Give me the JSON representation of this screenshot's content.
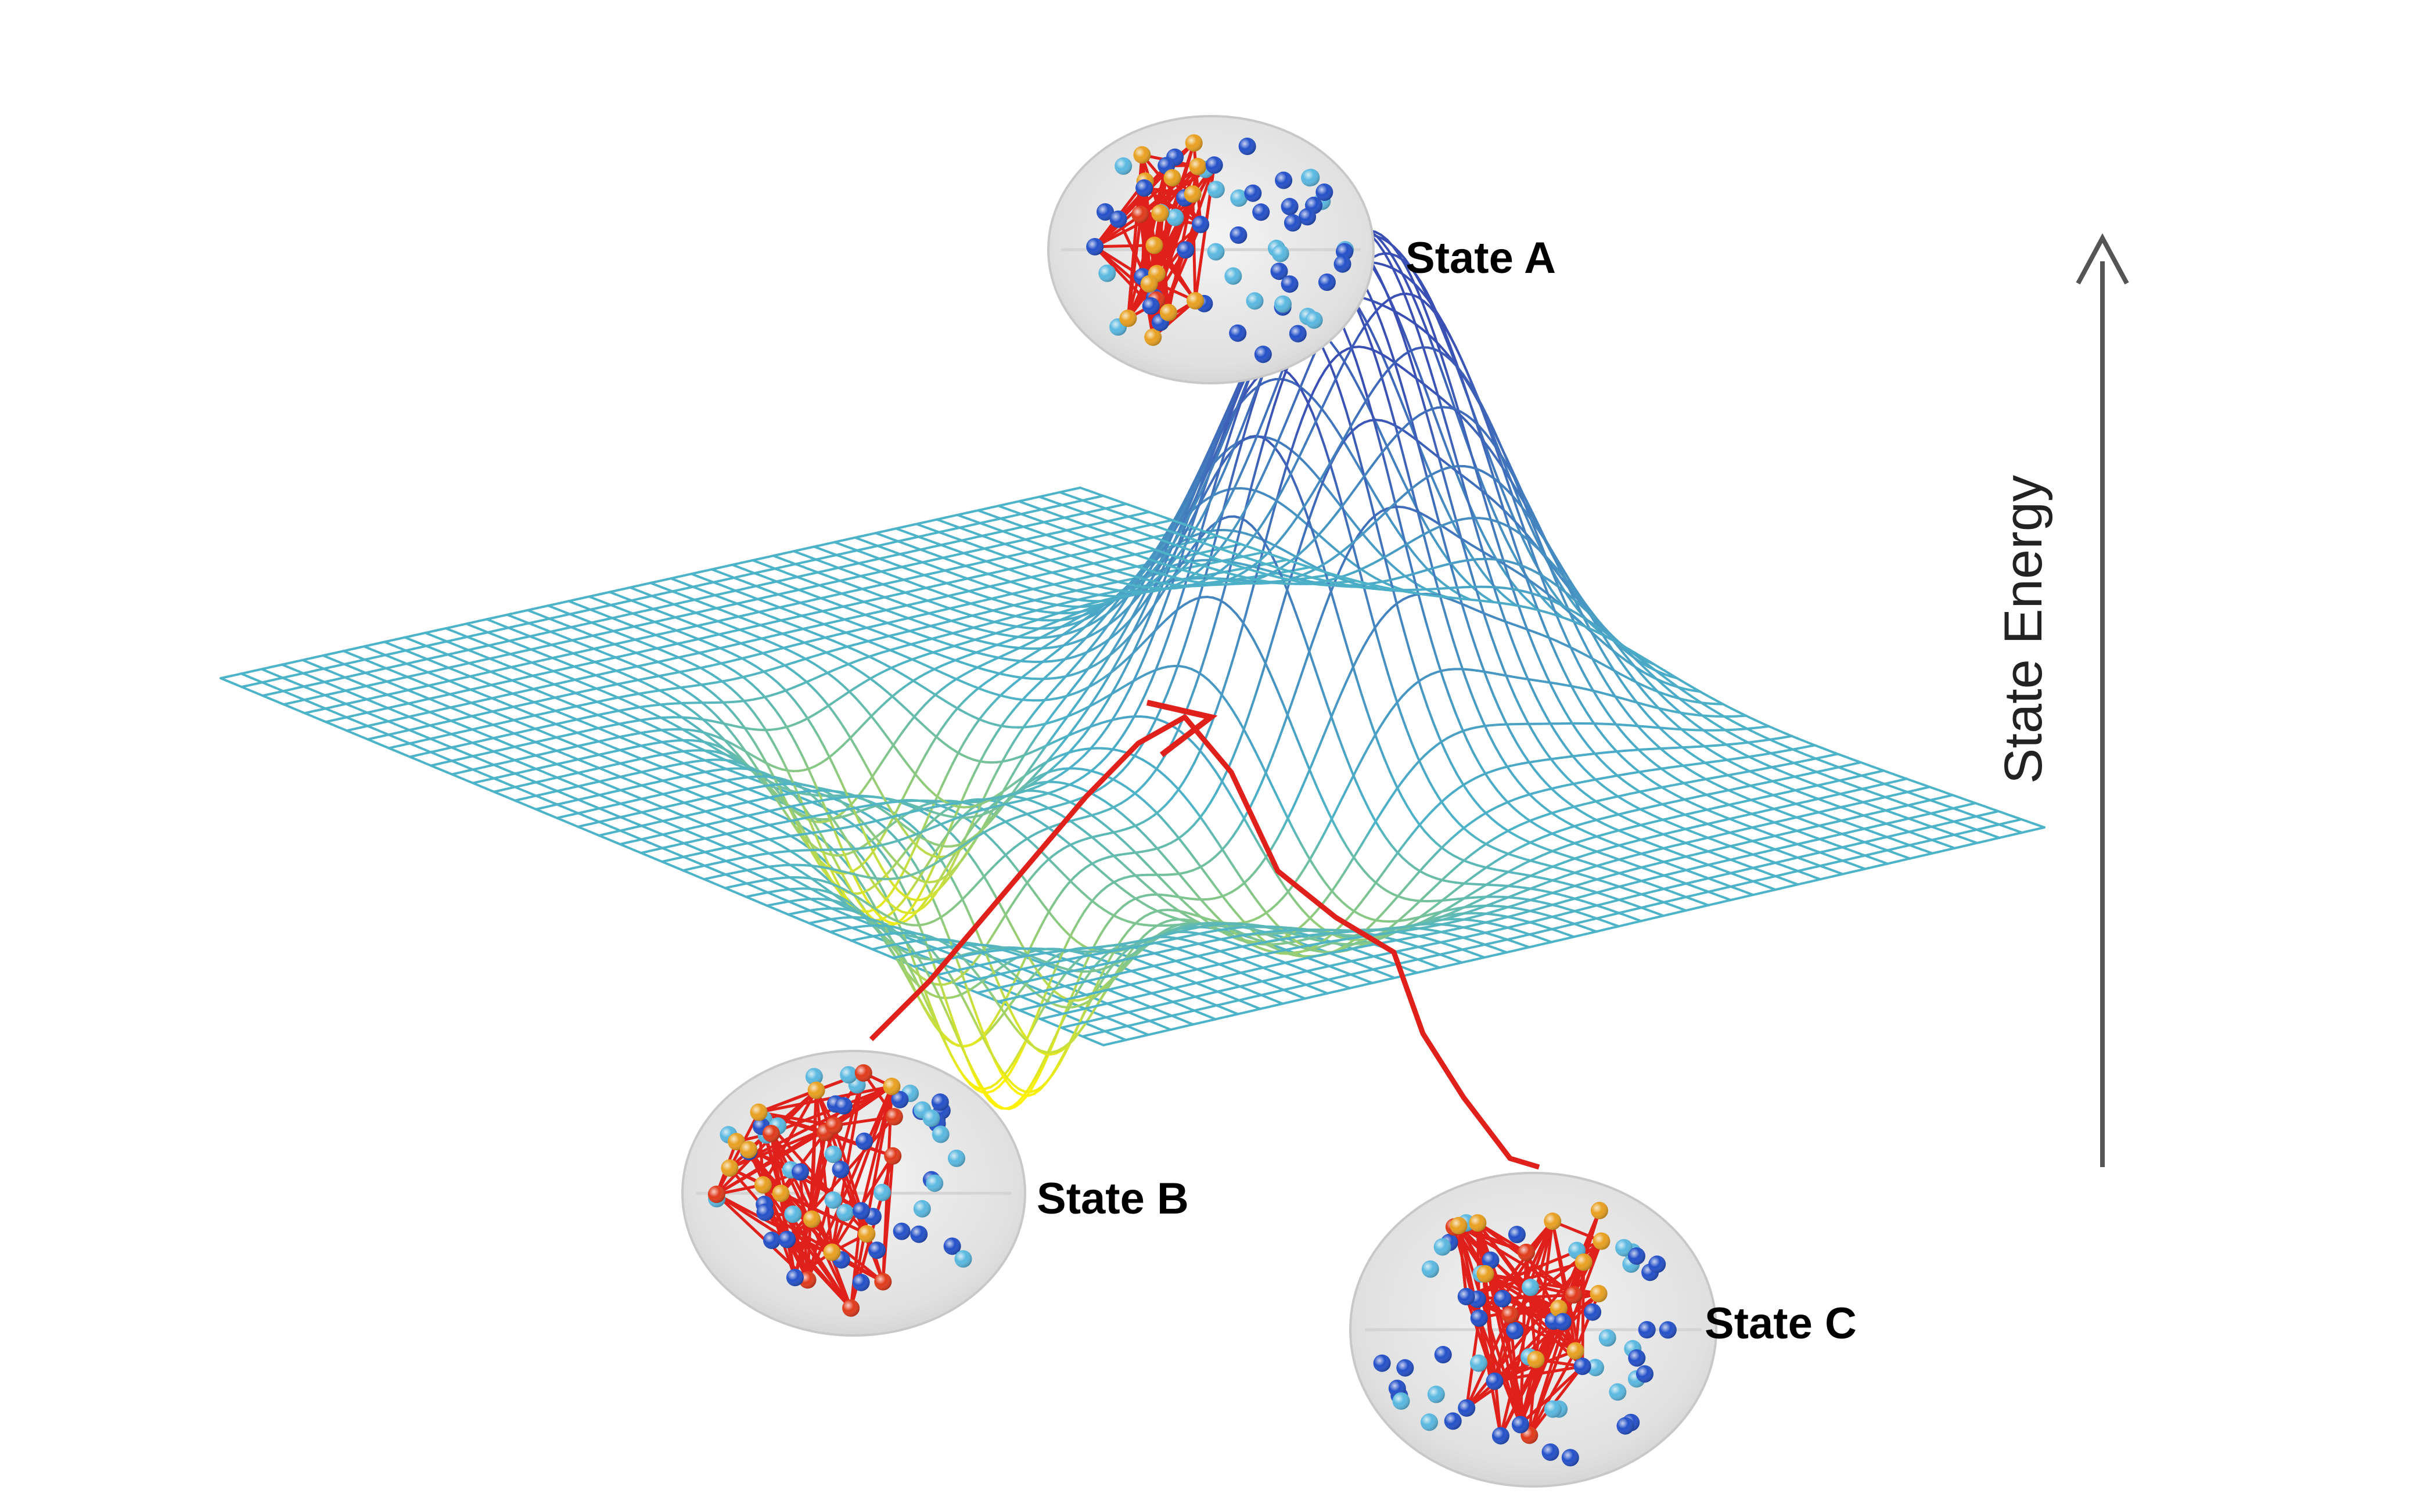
{
  "states": [
    {
      "id": "A",
      "label": "State A"
    },
    {
      "id": "B",
      "label": "State B"
    },
    {
      "id": "C",
      "label": "State C"
    }
  ],
  "axis": {
    "label": "State Energy"
  },
  "colors": {
    "mesh_high": "#3a4fb4",
    "mesh_mid": "#4db3c8",
    "mesh_low": "#fff200",
    "path": "#e0201b",
    "node_red": "#e03a1a",
    "node_orange": "#e8a020",
    "node_blue": "#2450c8",
    "node_light_blue": "#5ab8e0",
    "brain_fill": "#e2e2e2",
    "axis": "#555555"
  }
}
